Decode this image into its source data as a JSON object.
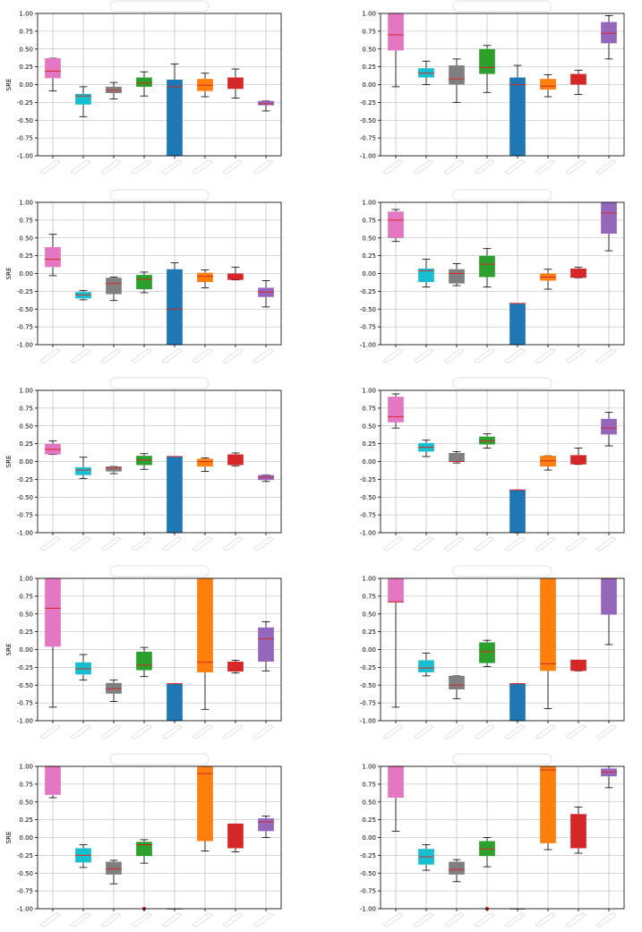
{
  "figure": {
    "colors": {
      "pink": "#e377c2",
      "cyan": "#17becf",
      "gray": "#7f7f7f",
      "green": "#2ca02c",
      "blue": "#1f77b4",
      "orange": "#ff7f0e",
      "red": "#d62728",
      "purple": "#9467bd",
      "median": "#d62728",
      "grid": "#b0b0b0",
      "axis": "#000000"
    }
  },
  "chart_data": [
    {
      "type": "box",
      "ylabel": "SRE",
      "ylim": [
        -1,
        1
      ],
      "grid": true,
      "yticks": [
        "1.00",
        "0.75",
        "0.50",
        "0.25",
        "0.00",
        "-0.25",
        "-0.50",
        "-0.75",
        "-1.00"
      ],
      "boxes": [
        {
          "color": "pink",
          "whisker_low": -0.09,
          "q1": 0.09,
          "median": 0.19,
          "q3": 0.37,
          "whisker_high": 0.37
        },
        {
          "color": "cyan",
          "whisker_low": -0.45,
          "q1": -0.28,
          "median": -0.16,
          "q3": -0.13,
          "whisker_high": -0.03
        },
        {
          "color": "gray",
          "whisker_low": -0.2,
          "q1": -0.12,
          "median": -0.08,
          "q3": -0.03,
          "whisker_high": 0.03
        },
        {
          "color": "green",
          "whisker_low": -0.16,
          "q1": -0.03,
          "median": 0.02,
          "q3": 0.1,
          "whisker_high": 0.18
        },
        {
          "color": "blue",
          "whisker_low": -1.0,
          "q1": -1.0,
          "median": -0.03,
          "q3": 0.07,
          "whisker_high": 0.29
        },
        {
          "color": "orange",
          "whisker_low": -0.17,
          "q1": -0.09,
          "median": -0.01,
          "q3": 0.08,
          "whisker_high": 0.16
        },
        {
          "color": "red",
          "whisker_low": -0.19,
          "q1": -0.06,
          "median": 0.0,
          "q3": 0.1,
          "whisker_high": 0.22
        },
        {
          "color": "purple",
          "whisker_low": -0.37,
          "q1": -0.29,
          "median": -0.27,
          "q3": -0.23,
          "whisker_high": -0.23
        }
      ]
    },
    {
      "type": "box",
      "ylabel": "",
      "ylim": [
        -1,
        1
      ],
      "grid": true,
      "yticks": [
        "1.00",
        "0.75",
        "0.50",
        "0.25",
        "0.00",
        "-0.25",
        "-0.50",
        "-0.75",
        "-1.00"
      ],
      "boxes": [
        {
          "color": "pink",
          "whisker_low": -0.03,
          "q1": 0.48,
          "median": 0.7,
          "q3": 1.0,
          "whisker_high": 1.0
        },
        {
          "color": "cyan",
          "whisker_low": 0.0,
          "q1": 0.1,
          "median": 0.16,
          "q3": 0.23,
          "whisker_high": 0.33
        },
        {
          "color": "gray",
          "whisker_low": -0.25,
          "q1": 0.0,
          "median": 0.08,
          "q3": 0.27,
          "whisker_high": 0.36
        },
        {
          "color": "green",
          "whisker_low": -0.11,
          "q1": 0.15,
          "median": 0.24,
          "q3": 0.5,
          "whisker_high": 0.55
        },
        {
          "color": "blue",
          "whisker_low": -1.0,
          "q1": -1.0,
          "median": 0.0,
          "q3": 0.1,
          "whisker_high": 0.27
        },
        {
          "color": "orange",
          "whisker_low": -0.17,
          "q1": -0.07,
          "median": -0.02,
          "q3": 0.08,
          "whisker_high": 0.14
        },
        {
          "color": "red",
          "whisker_low": -0.14,
          "q1": 0.0,
          "median": 0.07,
          "q3": 0.15,
          "whisker_high": 0.2
        },
        {
          "color": "purple",
          "whisker_low": 0.36,
          "q1": 0.58,
          "median": 0.72,
          "q3": 0.88,
          "whisker_high": 0.97
        }
      ]
    },
    {
      "type": "box",
      "ylabel": "SRE",
      "ylim": [
        -1,
        1
      ],
      "grid": true,
      "yticks": [
        "1.00",
        "0.75",
        "0.50",
        "0.25",
        "0.00",
        "-0.25",
        "-0.50",
        "-0.75",
        "-1.00"
      ],
      "boxes": [
        {
          "color": "pink",
          "whisker_low": -0.03,
          "q1": 0.09,
          "median": 0.2,
          "q3": 0.37,
          "whisker_high": 0.55
        },
        {
          "color": "cyan",
          "whisker_low": -0.37,
          "q1": -0.35,
          "median": -0.3,
          "q3": -0.26,
          "whisker_high": -0.24
        },
        {
          "color": "gray",
          "whisker_low": -0.38,
          "q1": -0.29,
          "median": -0.14,
          "q3": -0.06,
          "whisker_high": -0.05
        },
        {
          "color": "green",
          "whisker_low": -0.27,
          "q1": -0.22,
          "median": -0.08,
          "q3": -0.02,
          "whisker_high": 0.02
        },
        {
          "color": "blue",
          "whisker_low": -1.0,
          "q1": -1.0,
          "median": -0.5,
          "q3": 0.06,
          "whisker_high": 0.15
        },
        {
          "color": "orange",
          "whisker_low": -0.2,
          "q1": -0.12,
          "median": -0.04,
          "q3": 0.01,
          "whisker_high": 0.05
        },
        {
          "color": "red",
          "whisker_low": -0.09,
          "q1": -0.09,
          "median": -0.05,
          "q3": 0.0,
          "whisker_high": 0.09
        },
        {
          "color": "purple",
          "whisker_low": -0.47,
          "q1": -0.33,
          "median": -0.26,
          "q3": -0.2,
          "whisker_high": -0.1
        }
      ]
    },
    {
      "type": "box",
      "ylabel": "",
      "ylim": [
        -1,
        1
      ],
      "grid": true,
      "yticks": [
        "1.00",
        "0.75",
        "0.50",
        "0.25",
        "0.00",
        "-0.25",
        "-0.50",
        "-0.75",
        "-1.00"
      ],
      "boxes": [
        {
          "color": "pink",
          "whisker_low": 0.45,
          "q1": 0.5,
          "median": 0.75,
          "q3": 0.87,
          "whisker_high": 0.9
        },
        {
          "color": "cyan",
          "whisker_low": -0.19,
          "q1": -0.12,
          "median": 0.04,
          "q3": 0.07,
          "whisker_high": 0.2
        },
        {
          "color": "gray",
          "whisker_low": -0.17,
          "q1": -0.14,
          "median": 0.0,
          "q3": 0.06,
          "whisker_high": 0.14
        },
        {
          "color": "green",
          "whisker_low": -0.19,
          "q1": -0.05,
          "median": 0.13,
          "q3": 0.25,
          "whisker_high": 0.35
        },
        {
          "color": "blue",
          "whisker_low": -1.0,
          "q1": -1.0,
          "median": -0.42,
          "q3": -0.42,
          "whisker_high": -0.42
        },
        {
          "color": "orange",
          "whisker_low": -0.22,
          "q1": -0.1,
          "median": -0.05,
          "q3": 0.0,
          "whisker_high": 0.06
        },
        {
          "color": "red",
          "whisker_low": -0.06,
          "q1": -0.06,
          "median": 0.03,
          "q3": 0.07,
          "whisker_high": 0.09
        },
        {
          "color": "purple",
          "whisker_low": 0.32,
          "q1": 0.56,
          "median": 0.85,
          "q3": 1.0,
          "whisker_high": 1.0
        }
      ]
    },
    {
      "type": "box",
      "ylabel": "SRE",
      "ylim": [
        -1,
        1
      ],
      "grid": true,
      "yticks": [
        "1.00",
        "0.75",
        "0.50",
        "0.25",
        "0.00",
        "-0.25",
        "-0.50",
        "-0.75",
        "-1.00"
      ],
      "boxes": [
        {
          "color": "pink",
          "whisker_low": 0.1,
          "q1": 0.1,
          "median": 0.17,
          "q3": 0.25,
          "whisker_high": 0.29
        },
        {
          "color": "cyan",
          "whisker_low": -0.24,
          "q1": -0.19,
          "median": -0.12,
          "q3": -0.08,
          "whisker_high": 0.06
        },
        {
          "color": "gray",
          "whisker_low": -0.17,
          "q1": -0.14,
          "median": -0.09,
          "q3": -0.07,
          "whisker_high": -0.07
        },
        {
          "color": "green",
          "whisker_low": -0.11,
          "q1": -0.05,
          "median": 0.02,
          "q3": 0.08,
          "whisker_high": 0.11
        },
        {
          "color": "blue",
          "whisker_low": -1.0,
          "q1": -1.0,
          "median": 0.07,
          "q3": 0.07,
          "whisker_high": 0.07
        },
        {
          "color": "orange",
          "whisker_low": -0.14,
          "q1": -0.07,
          "median": 0.0,
          "q3": 0.04,
          "whisker_high": 0.05
        },
        {
          "color": "red",
          "whisker_low": -0.06,
          "q1": -0.05,
          "median": 0.04,
          "q3": 0.1,
          "whisker_high": 0.12
        },
        {
          "color": "purple",
          "whisker_low": -0.28,
          "q1": -0.26,
          "median": -0.22,
          "q3": -0.19,
          "whisker_high": -0.19
        }
      ]
    },
    {
      "type": "box",
      "ylabel": "",
      "ylim": [
        -1,
        1
      ],
      "grid": true,
      "yticks": [
        "1.00",
        "0.75",
        "0.50",
        "0.25",
        "0.00",
        "-0.25",
        "-0.50",
        "-0.75",
        "-1.00"
      ],
      "boxes": [
        {
          "color": "pink",
          "whisker_low": 0.47,
          "q1": 0.55,
          "median": 0.63,
          "q3": 0.91,
          "whisker_high": 0.95
        },
        {
          "color": "cyan",
          "whisker_low": 0.07,
          "q1": 0.14,
          "median": 0.2,
          "q3": 0.26,
          "whisker_high": 0.3
        },
        {
          "color": "gray",
          "whisker_low": -0.02,
          "q1": 0.0,
          "median": 0.0,
          "q3": 0.12,
          "whisker_high": 0.14
        },
        {
          "color": "green",
          "whisker_low": 0.19,
          "q1": 0.24,
          "median": 0.29,
          "q3": 0.35,
          "whisker_high": 0.39
        },
        {
          "color": "blue",
          "whisker_low": -1.0,
          "q1": -1.0,
          "median": -0.4,
          "q3": -0.4,
          "whisker_high": -0.4
        },
        {
          "color": "orange",
          "whisker_low": -0.12,
          "q1": -0.07,
          "median": 0.01,
          "q3": 0.08,
          "whisker_high": 0.08
        },
        {
          "color": "red",
          "whisker_low": -0.04,
          "q1": -0.04,
          "median": 0.03,
          "q3": 0.09,
          "whisker_high": 0.19
        },
        {
          "color": "purple",
          "whisker_low": 0.22,
          "q1": 0.38,
          "median": 0.47,
          "q3": 0.6,
          "whisker_high": 0.69
        }
      ]
    },
    {
      "type": "box",
      "ylabel": "SRE",
      "ylim": [
        -1,
        1
      ],
      "grid": true,
      "yticks": [
        "1.00",
        "0.75",
        "0.50",
        "0.25",
        "0.00",
        "-0.25",
        "-0.50",
        "-0.75",
        "-1.00"
      ],
      "boxes": [
        {
          "color": "pink",
          "whisker_low": -0.81,
          "q1": 0.04,
          "median": 0.58,
          "q3": 1.0,
          "whisker_high": 1.0
        },
        {
          "color": "cyan",
          "whisker_low": -0.43,
          "q1": -0.35,
          "median": -0.27,
          "q3": -0.18,
          "whisker_high": -0.07
        },
        {
          "color": "gray",
          "whisker_low": -0.73,
          "q1": -0.62,
          "median": -0.55,
          "q3": -0.47,
          "whisker_high": -0.43
        },
        {
          "color": "green",
          "whisker_low": -0.38,
          "q1": -0.29,
          "median": -0.22,
          "q3": -0.03,
          "whisker_high": 0.03
        },
        {
          "color": "blue",
          "whisker_low": -1.0,
          "q1": -1.0,
          "median": -0.48,
          "q3": -0.48,
          "whisker_high": -0.48
        },
        {
          "color": "orange",
          "whisker_low": -0.84,
          "q1": -0.32,
          "median": -0.18,
          "q3": 1.0,
          "whisker_high": 1.0
        },
        {
          "color": "red",
          "whisker_low": -0.33,
          "q1": -0.31,
          "median": -0.24,
          "q3": -0.17,
          "whisker_high": -0.15
        },
        {
          "color": "purple",
          "whisker_low": -0.3,
          "q1": -0.17,
          "median": 0.15,
          "q3": 0.31,
          "whisker_high": 0.39
        }
      ]
    },
    {
      "type": "box",
      "ylabel": "",
      "ylim": [
        -1,
        1
      ],
      "grid": true,
      "yticks": [
        "1.00",
        "0.75",
        "0.50",
        "0.25",
        "0.00",
        "-0.25",
        "-0.50",
        "-0.75",
        "-1.00"
      ],
      "boxes": [
        {
          "color": "pink",
          "whisker_low": -0.81,
          "q1": 0.66,
          "median": 0.67,
          "q3": 1.0,
          "whisker_high": 1.0
        },
        {
          "color": "cyan",
          "whisker_low": -0.37,
          "q1": -0.32,
          "median": -0.26,
          "q3": -0.15,
          "whisker_high": -0.05
        },
        {
          "color": "gray",
          "whisker_low": -0.69,
          "q1": -0.56,
          "median": -0.5,
          "q3": -0.37,
          "whisker_high": -0.37
        },
        {
          "color": "green",
          "whisker_low": -0.24,
          "q1": -0.19,
          "median": -0.03,
          "q3": 0.1,
          "whisker_high": 0.13
        },
        {
          "color": "blue",
          "whisker_low": -1.0,
          "q1": -1.0,
          "median": -0.48,
          "q3": -0.48,
          "whisker_high": -0.48
        },
        {
          "color": "orange",
          "whisker_low": -0.83,
          "q1": -0.3,
          "median": -0.2,
          "q3": 1.0,
          "whisker_high": 1.0
        },
        {
          "color": "red",
          "whisker_low": -0.3,
          "q1": -0.3,
          "median": -0.15,
          "q3": -0.15,
          "whisker_high": -0.15
        },
        {
          "color": "purple",
          "whisker_low": 0.07,
          "q1": 0.49,
          "median": 1.0,
          "q3": 1.0,
          "whisker_high": 1.0
        }
      ]
    },
    {
      "type": "box",
      "ylabel": "SRE",
      "ylim": [
        -1,
        1
      ],
      "grid": true,
      "yticks": [
        "1.00",
        "0.75",
        "0.50",
        "0.25",
        "0.00",
        "-0.25",
        "-0.50",
        "-0.75",
        "-1.00"
      ],
      "boxes": [
        {
          "color": "pink",
          "whisker_low": 0.56,
          "q1": 0.6,
          "median": 1.0,
          "q3": 1.0,
          "whisker_high": 1.0
        },
        {
          "color": "cyan",
          "whisker_low": -0.42,
          "q1": -0.35,
          "median": -0.25,
          "q3": -0.15,
          "whisker_high": -0.1
        },
        {
          "color": "gray",
          "whisker_low": -0.65,
          "q1": -0.52,
          "median": -0.44,
          "q3": -0.34,
          "whisker_high": -0.32
        },
        {
          "color": "green",
          "whisker_low": -0.36,
          "q1": -0.26,
          "median": -0.1,
          "q3": -0.06,
          "whisker_high": -0.03,
          "outliers": [
            -1.0
          ]
        },
        {
          "color": "blue",
          "whisker_low": -1.0,
          "q1": -1.0,
          "median": -1.0,
          "q3": -1.0,
          "whisker_high": -1.0
        },
        {
          "color": "orange",
          "whisker_low": -0.19,
          "q1": -0.05,
          "median": 0.9,
          "q3": 1.0,
          "whisker_high": 1.0
        },
        {
          "color": "red",
          "whisker_low": -0.2,
          "q1": -0.15,
          "median": 0.19,
          "q3": 0.19,
          "whisker_high": 0.19
        },
        {
          "color": "purple",
          "whisker_low": 0.0,
          "q1": 0.09,
          "median": 0.22,
          "q3": 0.27,
          "whisker_high": 0.3
        }
      ]
    },
    {
      "type": "box",
      "ylabel": "",
      "ylim": [
        -1,
        1
      ],
      "grid": true,
      "yticks": [
        "1.00",
        "0.75",
        "0.50",
        "0.25",
        "0.00",
        "-0.25",
        "-0.50",
        "-0.75",
        "-1.00"
      ],
      "boxes": [
        {
          "color": "pink",
          "whisker_low": 0.09,
          "q1": 0.56,
          "median": 1.0,
          "q3": 1.0,
          "whisker_high": 1.0
        },
        {
          "color": "cyan",
          "whisker_low": -0.46,
          "q1": -0.38,
          "median": -0.27,
          "q3": -0.16,
          "whisker_high": -0.1
        },
        {
          "color": "gray",
          "whisker_low": -0.62,
          "q1": -0.52,
          "median": -0.45,
          "q3": -0.34,
          "whisker_high": -0.31
        },
        {
          "color": "green",
          "whisker_low": -0.41,
          "q1": -0.26,
          "median": -0.16,
          "q3": -0.05,
          "whisker_high": 0.0,
          "outliers": [
            -1.0
          ]
        },
        {
          "color": "blue",
          "whisker_low": -1.0,
          "q1": -1.0,
          "median": -1.0,
          "q3": -1.0,
          "whisker_high": -1.0
        },
        {
          "color": "orange",
          "whisker_low": -0.17,
          "q1": -0.08,
          "median": 0.95,
          "q3": 1.0,
          "whisker_high": 1.0
        },
        {
          "color": "red",
          "whisker_low": -0.22,
          "q1": -0.15,
          "median": 0.08,
          "q3": 0.33,
          "whisker_high": 0.43
        },
        {
          "color": "purple",
          "whisker_low": 0.7,
          "q1": 0.86,
          "median": 0.92,
          "q3": 0.97,
          "whisker_high": 1.0
        }
      ]
    }
  ]
}
